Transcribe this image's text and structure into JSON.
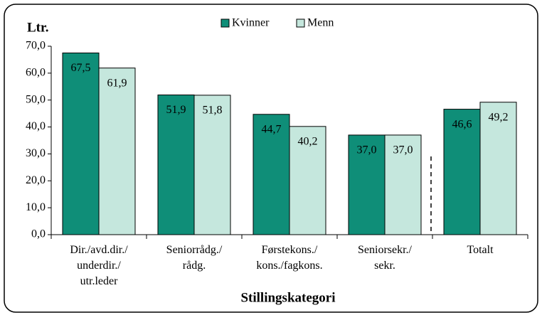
{
  "chart_data": {
    "type": "bar",
    "y_label": "Ltr.",
    "x_label": "Stillingskategori",
    "categories": [
      [
        "Dir./avd.dir./",
        "underdir./",
        "utr.leder"
      ],
      [
        "Seniorrådg./",
        "rådg."
      ],
      [
        "Førstekons./",
        "kons./fagkons."
      ],
      [
        "Seniorsekr./",
        "sekr."
      ],
      [
        "Totalt"
      ]
    ],
    "series": [
      {
        "name": "Kvinner",
        "color": "#0f8e78",
        "values": [
          67.5,
          51.9,
          44.7,
          37.0,
          46.6
        ],
        "value_labels": [
          "67,5",
          "51,9",
          "44,7",
          "37,0",
          "46,6"
        ]
      },
      {
        "name": "Menn",
        "color": "#c5e7dd",
        "values": [
          61.9,
          51.8,
          40.2,
          37.0,
          49.2
        ],
        "value_labels": [
          "61,9",
          "51,8",
          "40,2",
          "37,0",
          "49,2"
        ]
      }
    ],
    "ylim": [
      0,
      70
    ],
    "yticks": [
      {
        "value": 0,
        "label": "0,0"
      },
      {
        "value": 10,
        "label": "10,0"
      },
      {
        "value": 20,
        "label": "20,0"
      },
      {
        "value": 30,
        "label": "30,0"
      },
      {
        "value": 40,
        "label": "40,0"
      },
      {
        "value": 50,
        "label": "50,0"
      },
      {
        "value": 60,
        "label": "60,0"
      },
      {
        "value": 70,
        "label": "70,0"
      }
    ],
    "legend": "top"
  }
}
